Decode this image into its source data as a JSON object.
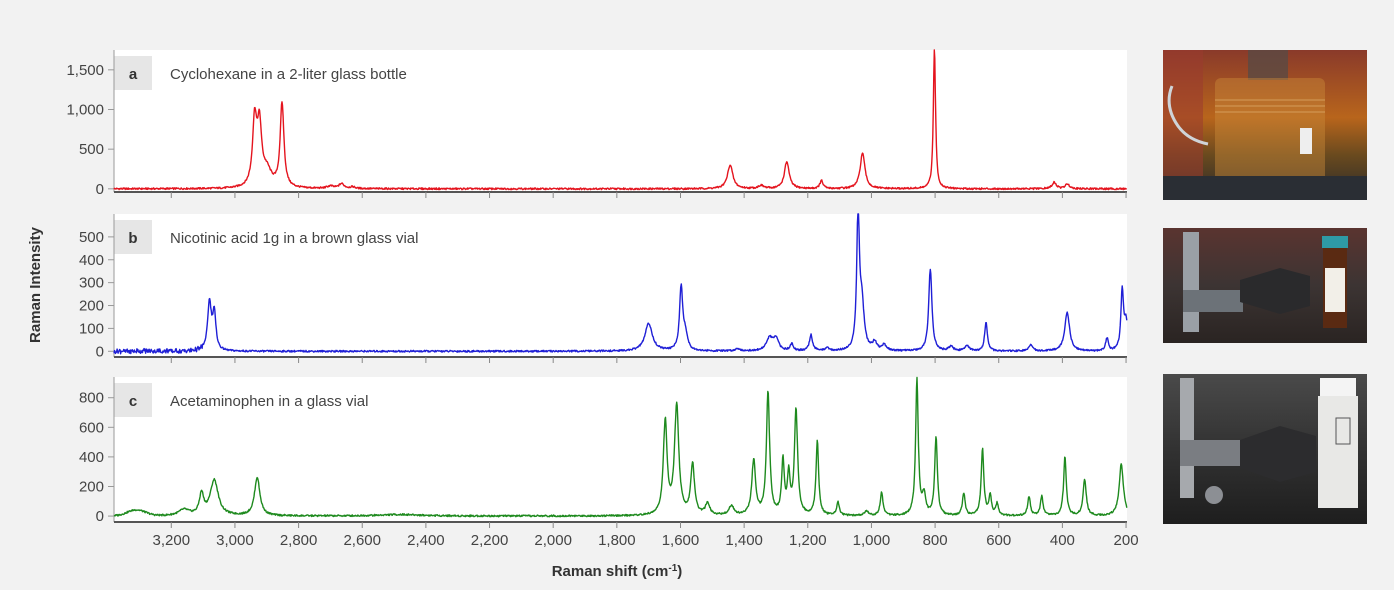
{
  "chart_data": {
    "type": "line",
    "xlabel": "Raman shift (cm",
    "xlabel_sup": "-1",
    "ylabel": "Raman Intensity",
    "xlim": [
      3380,
      197
    ],
    "x_ticks": [
      3200,
      3000,
      2800,
      2600,
      2400,
      2200,
      2000,
      1800,
      1600,
      1400,
      1200,
      1000,
      800,
      600,
      400,
      200
    ],
    "x_tick_labels": [
      "3,200",
      "3,000",
      "2,800",
      "2,600",
      "2,400",
      "2,200",
      "2,000",
      "1,800",
      "1,600",
      "1,400",
      "1,200",
      "1,000",
      "800",
      "600",
      "400",
      "200"
    ],
    "grid": false,
    "panels": [
      {
        "letter": "a",
        "title": "Cyclohexane in a 2-liter glass bottle",
        "color": "#e4141e",
        "ylim": [
          -40,
          1750
        ],
        "y_ticks": [
          0,
          500,
          1000,
          1500
        ],
        "y_tick_labels": [
          "0",
          "500",
          "1,000",
          "1,500"
        ],
        "baseline": 0,
        "peaks": [
          [
            2938,
            820,
            8
          ],
          [
            2923,
            720,
            8
          ],
          [
            2900,
            210,
            18
          ],
          [
            2852,
            1060,
            7
          ],
          [
            2700,
            30,
            12
          ],
          [
            2665,
            60,
            10
          ],
          [
            2630,
            20,
            10
          ],
          [
            1444,
            300,
            10
          ],
          [
            1347,
            40,
            10
          ],
          [
            1266,
            340,
            9
          ],
          [
            1157,
            100,
            6
          ],
          [
            1028,
            450,
            9
          ],
          [
            802,
            1800,
            4
          ],
          [
            426,
            80,
            8
          ],
          [
            384,
            60,
            8
          ]
        ]
      },
      {
        "letter": "b",
        "title": "Nicotinic acid 1g in a brown glass vial",
        "color": "#1f1fd6",
        "ylim": [
          -25,
          600
        ],
        "y_ticks": [
          0,
          100,
          200,
          300,
          400,
          500
        ],
        "y_tick_labels": [
          "0",
          "100",
          "200",
          "300",
          "400",
          "500"
        ],
        "baseline": 0,
        "rise": [
          3180,
          3100,
          20
        ],
        "peaks": [
          [
            3080,
            210,
            7
          ],
          [
            3065,
            160,
            6
          ],
          [
            1700,
            120,
            14
          ],
          [
            1598,
            270,
            6
          ],
          [
            1585,
            70,
            8
          ],
          [
            1420,
            10,
            10
          ],
          [
            1320,
            55,
            12
          ],
          [
            1300,
            50,
            10
          ],
          [
            1250,
            30,
            6
          ],
          [
            1190,
            70,
            6
          ],
          [
            1140,
            15,
            6
          ],
          [
            1042,
            590,
            5
          ],
          [
            1030,
            200,
            8
          ],
          [
            990,
            35,
            8
          ],
          [
            960,
            25,
            8
          ],
          [
            815,
            360,
            6
          ],
          [
            750,
            20,
            8
          ],
          [
            700,
            25,
            8
          ],
          [
            640,
            130,
            5
          ],
          [
            500,
            25,
            8
          ],
          [
            385,
            170,
            9
          ],
          [
            260,
            55,
            5
          ],
          [
            212,
            260,
            5
          ],
          [
            200,
            120,
            6
          ]
        ]
      },
      {
        "letter": "c",
        "title": "Acetaminophen in a glass vial",
        "color": "#1e8a1e",
        "ylim": [
          -40,
          940
        ],
        "y_ticks": [
          0,
          200,
          400,
          600,
          800
        ],
        "y_tick_labels": [
          "0",
          "200",
          "400",
          "600",
          "800"
        ],
        "baseline": 0,
        "bump": [
          3310,
          40,
          40
        ],
        "peaks": [
          [
            3160,
            40,
            20
          ],
          [
            3105,
            140,
            8
          ],
          [
            3065,
            240,
            15
          ],
          [
            2930,
            260,
            10
          ],
          [
            2480,
            10,
            80
          ],
          [
            1648,
            630,
            7
          ],
          [
            1612,
            740,
            8
          ],
          [
            1562,
            340,
            7
          ],
          [
            1515,
            80,
            8
          ],
          [
            1440,
            60,
            10
          ],
          [
            1370,
            370,
            7
          ],
          [
            1325,
            830,
            6
          ],
          [
            1278,
            360,
            5
          ],
          [
            1260,
            260,
            5
          ],
          [
            1237,
            710,
            6
          ],
          [
            1170,
            500,
            5
          ],
          [
            1105,
            90,
            5
          ],
          [
            1015,
            30,
            8
          ],
          [
            968,
            160,
            5
          ],
          [
            857,
            920,
            5
          ],
          [
            835,
            130,
            6
          ],
          [
            797,
            530,
            5
          ],
          [
            710,
            150,
            5
          ],
          [
            651,
            450,
            5
          ],
          [
            627,
            130,
            5
          ],
          [
            605,
            80,
            5
          ],
          [
            505,
            130,
            5
          ],
          [
            465,
            130,
            5
          ],
          [
            392,
            400,
            5
          ],
          [
            330,
            240,
            6
          ],
          [
            215,
            350,
            8
          ]
        ]
      }
    ]
  },
  "photos": [
    {
      "subject": "glass-bottle-photo"
    },
    {
      "subject": "brown-vial-photo"
    },
    {
      "subject": "white-vial-photo"
    }
  ]
}
